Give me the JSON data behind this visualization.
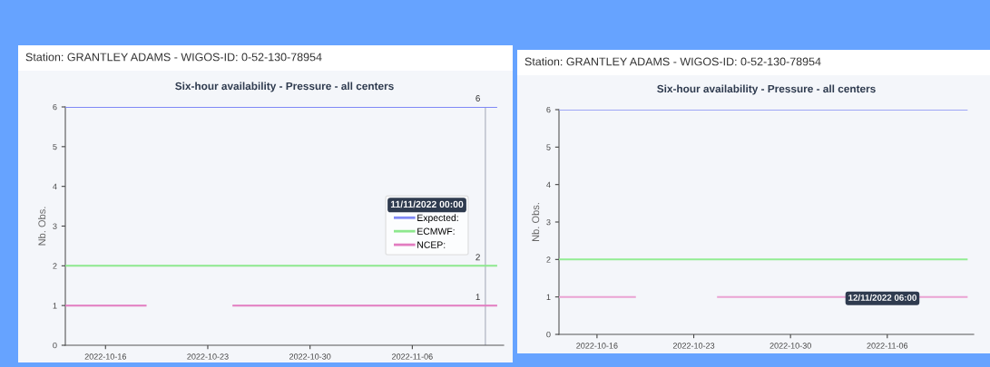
{
  "chart_data": [
    {
      "type": "line",
      "subtitle": "Station: GRANTLEY ADAMS - WIGOS-ID: 0-52-130-78954",
      "title": "Six-hour availability - Pressure - all centers",
      "ylabel": "Nb. Obs.",
      "x": [
        "2022-10-13T06:00",
        "2022-10-18T18:00",
        "2022-10-19T00:00",
        "2022-10-24T12:00",
        "2022-10-24T18:00",
        "2022-11-11T00:00",
        "2022-11-11T18:00"
      ],
      "series": [
        {
          "name": "Expected:",
          "color": "#7f88f5",
          "values": [
            6,
            6,
            6,
            6,
            6,
            6,
            6
          ],
          "value_labels": [
            null,
            null,
            null,
            null,
            null,
            "6",
            null
          ]
        },
        {
          "name": "ECMWF:",
          "color": "#8ee88e",
          "values": [
            2,
            2,
            2,
            2,
            2,
            2,
            2
          ],
          "value_labels": [
            null,
            null,
            null,
            null,
            null,
            "2",
            null
          ]
        },
        {
          "name": "NCEP:",
          "color": "#e27cc0",
          "values": [
            1,
            1,
            null,
            null,
            1,
            1,
            1
          ],
          "value_labels": [
            null,
            null,
            null,
            null,
            null,
            "1",
            null
          ]
        }
      ],
      "legend": "bottom right",
      "legend_title": "11/11/2022 00:00",
      "ref_lines": [
        {
          "axis": "x",
          "value": "2022-11-11T00:00",
          "color": "#b8bcc8"
        }
      ],
      "xlim": [
        "2022-10-13T06:00",
        "2022-11-12T06:00"
      ],
      "xticks": [
        "2022-10-16",
        "2022-10-23",
        "2022-10-30",
        "2022-11-06"
      ],
      "ylim": [
        0,
        6
      ],
      "yticks": [
        0,
        1,
        2,
        3,
        4,
        5,
        6
      ],
      "grid": false,
      "marker": "none",
      "line_style": "solid"
    },
    {
      "type": "line",
      "subtitle": "Station: GRANTLEY ADAMS - WIGOS-ID: 0-52-130-78954",
      "title": "Six-hour availability - Pressure - all centers",
      "ylabel": "Nb. Obs.",
      "x": [
        "2022-10-13T06:00",
        "2022-10-18T18:00",
        "2022-10-19T00:00",
        "2022-10-24T12:00",
        "2022-10-24T18:00",
        "2022-11-11T00:00",
        "2022-11-11T18:00"
      ],
      "series": [
        {
          "color": "#9fa6f5",
          "values": [
            6,
            6,
            6,
            6,
            6,
            6,
            6
          ]
        },
        {
          "color": "#93ec93",
          "values": [
            2,
            2,
            2,
            2,
            2,
            2,
            2
          ]
        },
        {
          "color": "#eaa2d2",
          "values": [
            1,
            1,
            null,
            null,
            1,
            1,
            1
          ]
        }
      ],
      "legend": false,
      "annotations": [
        "12/11/2022 06:00"
      ],
      "xlim": [
        "2022-10-13T06:00",
        "2022-11-12T06:00"
      ],
      "xticks": [
        "2022-10-16",
        "2022-10-23",
        "2022-10-30",
        "2022-11-06"
      ],
      "ylim": [
        0,
        6
      ],
      "yticks": [
        0,
        1,
        2,
        3,
        4,
        5,
        6
      ],
      "grid": false,
      "marker": "none",
      "line_style": "solid"
    }
  ]
}
